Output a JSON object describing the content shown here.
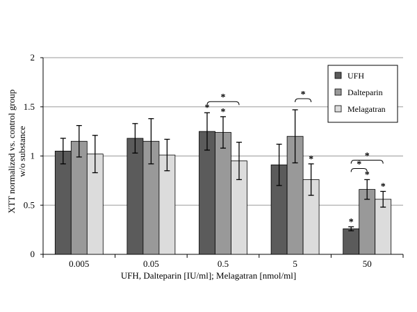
{
  "chart_data": {
    "type": "bar",
    "categories": [
      "0.005",
      "0.05",
      "0.5",
      "5",
      "50"
    ],
    "series": [
      {
        "name": "UFH",
        "values": [
          1.05,
          1.18,
          1.25,
          0.91,
          0.26
        ],
        "errors": [
          0.13,
          0.15,
          0.19,
          0.21,
          0.02
        ],
        "color": "#5b5b5b"
      },
      {
        "name": "Dalteparin",
        "values": [
          1.15,
          1.15,
          1.24,
          1.2,
          0.66
        ],
        "errors": [
          0.16,
          0.23,
          0.16,
          0.27,
          0.1
        ],
        "color": "#999999"
      },
      {
        "name": "Melagatran",
        "values": [
          1.02,
          1.01,
          0.95,
          0.76,
          0.56
        ],
        "errors": [
          0.19,
          0.16,
          0.19,
          0.16,
          0.08
        ],
        "color": "#dcdcdc"
      }
    ],
    "ylim": [
      0,
      2
    ],
    "yticks": [
      "0",
      "0.5",
      "1",
      "1.5",
      "2"
    ],
    "ylabel": [
      "XTT normalized vs. control group",
      "w/o substance"
    ],
    "xlabel": "UFH, Dalteparin [IU/ml]; Melagatran [nmol/ml]",
    "grid": true,
    "legend": "top-right",
    "stars": [
      {
        "category": 2,
        "series": 0
      },
      {
        "category": 2,
        "series": 1
      },
      {
        "category": 3,
        "series": 2
      },
      {
        "category": 4,
        "series": 0
      },
      {
        "category": 4,
        "series": 1
      },
      {
        "category": 4,
        "series": 2
      }
    ],
    "significance_brackets": [
      {
        "category": 2,
        "from": 0,
        "to": 2,
        "label": "*"
      },
      {
        "category": 3,
        "from": 1,
        "to": 2,
        "label": "*"
      },
      {
        "category": 4,
        "from": 0,
        "to": 1,
        "label": "*"
      },
      {
        "category": 4,
        "from": 0,
        "to": 2,
        "label": "*"
      }
    ]
  }
}
